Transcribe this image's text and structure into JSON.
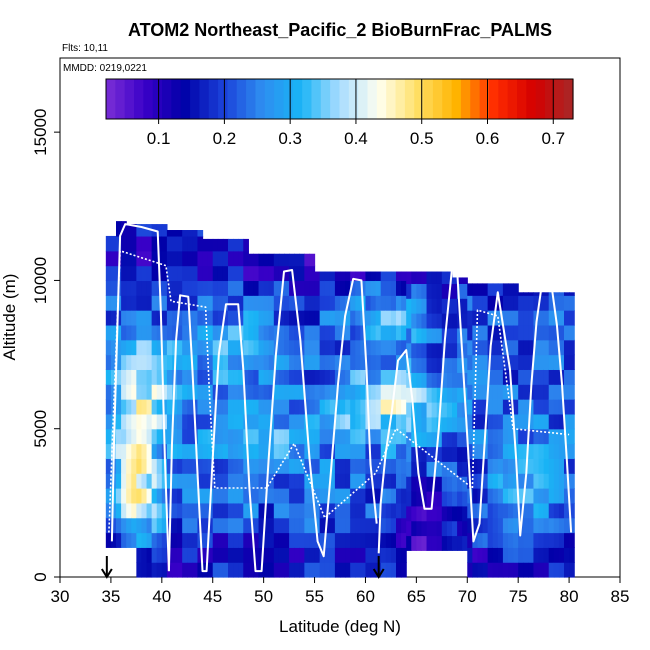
{
  "chart_data": {
    "type": "heatmap",
    "title": "ATOM2 Northeast_Pacific_2 BioBurnFrac_PALMS",
    "flights_note": "Flts: 10,11",
    "date_note": "MMDD: 0219,0221",
    "xlabel": "Latitude (deg N)",
    "ylabel": "Altitude (m)",
    "xlim": [
      30,
      85
    ],
    "ylim": [
      0,
      17500
    ],
    "x_ticks": [
      "30",
      "35",
      "40",
      "45",
      "50",
      "55",
      "60",
      "65",
      "70",
      "75",
      "80",
      "85"
    ],
    "y_ticks": [
      "0",
      "5000",
      "10000",
      "15000"
    ],
    "colorbar": {
      "range": [
        0.02,
        0.73
      ],
      "ticks": [
        "0.1",
        "0.2",
        "0.3",
        "0.4",
        "0.5",
        "0.6",
        "0.7"
      ],
      "colors": [
        "#7b2fd6",
        "#3a00c8",
        "#0000a8",
        "#1a3fd8",
        "#2e8cf0",
        "#19b4f5",
        "#a8dcff",
        "#fffff0",
        "#ffe066",
        "#ffb300",
        "#ff2a00",
        "#d40000",
        "#a82828"
      ]
    },
    "markers_lat": [
      34.6,
      61.3
    ],
    "series": [
      {
        "values": [
          [
            35.1,
            1200
          ],
          [
            35.3,
            4500
          ],
          [
            35.6,
            8000
          ],
          [
            35.9,
            11500
          ],
          [
            36.4,
            11900
          ],
          [
            38.0,
            11800
          ],
          [
            39.6,
            11650
          ],
          [
            39.9,
            9000
          ],
          [
            40.3,
            4000
          ],
          [
            40.7,
            200
          ]
        ]
      },
      {
        "values": [
          [
            40.7,
            200
          ],
          [
            41.0,
            4500
          ],
          [
            41.4,
            8000
          ],
          [
            41.8,
            9500
          ],
          [
            42.6,
            9450
          ],
          [
            43.0,
            7000
          ],
          [
            43.5,
            3500
          ],
          [
            44.0,
            200
          ],
          [
            44.4,
            200
          ],
          [
            45.0,
            4000
          ],
          [
            45.6,
            7500
          ],
          [
            46.3,
            9200
          ],
          [
            47.5,
            9200
          ],
          [
            48.0,
            7000
          ],
          [
            48.6,
            3000
          ],
          [
            49.2,
            200
          ],
          [
            49.8,
            200
          ],
          [
            50.5,
            4000
          ],
          [
            51.2,
            7500
          ],
          [
            52.0,
            10300
          ],
          [
            52.8,
            10350
          ],
          [
            53.6,
            8000
          ],
          [
            54.5,
            4000
          ],
          [
            55.3,
            1200
          ],
          [
            55.9,
            700
          ],
          [
            56.6,
            3500
          ],
          [
            57.3,
            6500
          ],
          [
            58.0,
            8800
          ],
          [
            58.8,
            10050
          ],
          [
            59.6,
            10000
          ],
          [
            60.1,
            7000
          ],
          [
            60.5,
            3800
          ],
          [
            61.1,
            1800
          ]
        ]
      },
      {
        "values": [
          [
            61.3,
            800
          ],
          [
            61.5,
            2500
          ],
          [
            62.0,
            4200
          ],
          [
            62.6,
            5600
          ],
          [
            63.2,
            7300
          ],
          [
            64.0,
            7650
          ],
          [
            64.6,
            6000
          ],
          [
            65.2,
            3500
          ],
          [
            65.8,
            2300
          ],
          [
            66.5,
            2300
          ],
          [
            67.2,
            5000
          ],
          [
            67.8,
            8000
          ],
          [
            68.5,
            10400
          ],
          [
            69.0,
            10350
          ],
          [
            69.6,
            7000
          ],
          [
            70.2,
            3600
          ],
          [
            70.6,
            1200
          ],
          [
            71.2,
            1800
          ],
          [
            71.7,
            4500
          ],
          [
            72.3,
            7800
          ],
          [
            73.0,
            9600
          ],
          [
            74.2,
            7000
          ],
          [
            74.8,
            4000
          ],
          [
            75.2,
            1400
          ],
          [
            75.8,
            3500
          ],
          [
            76.3,
            6500
          ],
          [
            76.8,
            8600
          ],
          [
            77.3,
            9800
          ],
          [
            78.3,
            9750
          ],
          [
            78.8,
            8500
          ],
          [
            79.3,
            6500
          ],
          [
            79.8,
            3800
          ],
          [
            80.2,
            1500
          ]
        ]
      },
      {
        "values": [
          [
            34.8,
            1500
          ],
          [
            35.3,
            6000
          ],
          [
            35.9,
            11000
          ],
          [
            40.4,
            10500
          ],
          [
            40.9,
            9300
          ],
          [
            44.3,
            9100
          ],
          [
            44.7,
            6000
          ],
          [
            45.2,
            3000
          ],
          [
            50.3,
            3000
          ],
          [
            53.0,
            4500
          ],
          [
            56.0,
            2000
          ],
          [
            61.0,
            3500
          ],
          [
            63.0,
            5000
          ],
          [
            70.5,
            3000
          ],
          [
            71.0,
            9000
          ],
          [
            73.0,
            8800
          ],
          [
            74.5,
            5000
          ],
          [
            80.0,
            4800
          ]
        ]
      }
    ]
  }
}
